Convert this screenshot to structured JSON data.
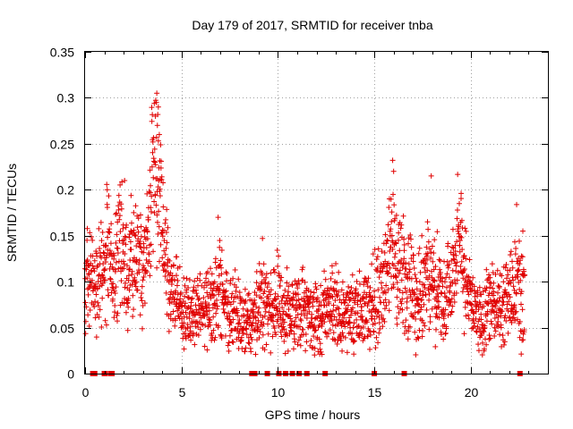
{
  "chart_data": {
    "type": "scatter",
    "title": "Day 179 of 2017, SRMTID for receiver tnba",
    "xlabel": "GPS time / hours",
    "ylabel": "SRMTID / TECUs",
    "xlim": [
      0,
      24
    ],
    "ylim": [
      0,
      0.35
    ],
    "x_ticks": [
      0,
      5,
      10,
      15,
      20
    ],
    "x_tick_labels": [
      "0",
      "5",
      "10",
      "15",
      "20"
    ],
    "y_ticks": [
      0,
      0.05,
      0.1,
      0.15,
      0.2,
      0.25,
      0.3,
      0.35
    ],
    "y_tick_labels": [
      "0",
      "0.05",
      "0.1",
      "0.15",
      "0.2",
      "0.25",
      "0.3",
      "0.35"
    ],
    "grid": true,
    "marker": "+",
    "color": "#e00000",
    "trend": [
      [
        0.0,
        0.1,
        0.025
      ],
      [
        0.3,
        0.11,
        0.025
      ],
      [
        0.5,
        0.09,
        0.02
      ],
      [
        0.9,
        0.11,
        0.03
      ],
      [
        1.2,
        0.14,
        0.035
      ],
      [
        1.5,
        0.1,
        0.03
      ],
      [
        1.8,
        0.15,
        0.035
      ],
      [
        2.2,
        0.11,
        0.03
      ],
      [
        2.6,
        0.13,
        0.03
      ],
      [
        3.0,
        0.11,
        0.025
      ],
      [
        3.3,
        0.16,
        0.03
      ],
      [
        3.6,
        0.24,
        0.04
      ],
      [
        3.85,
        0.2,
        0.04
      ],
      [
        4.1,
        0.13,
        0.03
      ],
      [
        4.5,
        0.09,
        0.025
      ],
      [
        5.0,
        0.07,
        0.02
      ],
      [
        5.5,
        0.06,
        0.02
      ],
      [
        6.0,
        0.07,
        0.02
      ],
      [
        6.5,
        0.08,
        0.02
      ],
      [
        7.0,
        0.1,
        0.03
      ],
      [
        7.4,
        0.07,
        0.02
      ],
      [
        8.0,
        0.06,
        0.02
      ],
      [
        8.6,
        0.05,
        0.02
      ],
      [
        9.0,
        0.08,
        0.025
      ],
      [
        9.5,
        0.07,
        0.02
      ],
      [
        10.0,
        0.08,
        0.02
      ],
      [
        10.5,
        0.07,
        0.02
      ],
      [
        11.0,
        0.07,
        0.02
      ],
      [
        11.5,
        0.07,
        0.02
      ],
      [
        12.0,
        0.06,
        0.02
      ],
      [
        12.5,
        0.07,
        0.02
      ],
      [
        13.0,
        0.07,
        0.02
      ],
      [
        13.5,
        0.06,
        0.02
      ],
      [
        14.0,
        0.065,
        0.02
      ],
      [
        14.5,
        0.07,
        0.02
      ],
      [
        15.0,
        0.08,
        0.025
      ],
      [
        15.5,
        0.1,
        0.025
      ],
      [
        15.9,
        0.14,
        0.035
      ],
      [
        16.3,
        0.11,
        0.03
      ],
      [
        16.8,
        0.1,
        0.03
      ],
      [
        17.3,
        0.08,
        0.025
      ],
      [
        17.8,
        0.12,
        0.03
      ],
      [
        18.2,
        0.09,
        0.025
      ],
      [
        18.6,
        0.08,
        0.025
      ],
      [
        19.0,
        0.1,
        0.025
      ],
      [
        19.4,
        0.15,
        0.03
      ],
      [
        19.8,
        0.09,
        0.025
      ],
      [
        20.2,
        0.07,
        0.02
      ],
      [
        20.6,
        0.06,
        0.02
      ],
      [
        21.0,
        0.07,
        0.02
      ],
      [
        21.5,
        0.07,
        0.02
      ],
      [
        22.0,
        0.09,
        0.025
      ],
      [
        22.4,
        0.1,
        0.03
      ],
      [
        22.8,
        0.07,
        0.03
      ]
    ],
    "outliers": [
      [
        3.72,
        0.305
      ],
      [
        3.8,
        0.29
      ],
      [
        3.65,
        0.28
      ],
      [
        3.75,
        0.27
      ],
      [
        3.85,
        0.26
      ],
      [
        15.95,
        0.232
      ],
      [
        16.0,
        0.22
      ],
      [
        17.95,
        0.215
      ],
      [
        19.5,
        0.196
      ],
      [
        2.05,
        0.21
      ],
      [
        1.15,
        0.2
      ],
      [
        6.9,
        0.17
      ],
      [
        9.2,
        0.147
      ],
      [
        22.7,
        0.155
      ],
      [
        0.1,
        0.145
      ]
    ],
    "data_gaps_hours": [
      0.4,
      0.5,
      1.0,
      1.05,
      1.35,
      1.4,
      8.65,
      8.8,
      9.45,
      10.05,
      10.4,
      10.75,
      11.1,
      11.5,
      12.45,
      15.0,
      16.55,
      22.55
    ]
  }
}
